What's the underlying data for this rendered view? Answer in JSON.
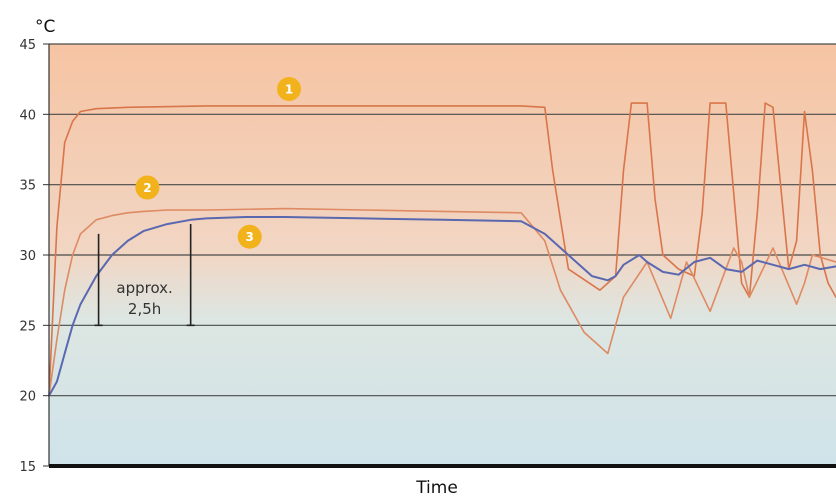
{
  "chart_data": {
    "type": "line",
    "unit_label": "°C",
    "xlabel": "Time",
    "ylabel": "",
    "ylim": [
      15,
      45
    ],
    "yticks": [
      15,
      20,
      25,
      30,
      35,
      40,
      45
    ],
    "grid": true,
    "colors": {
      "series_1": "#d9754a",
      "series_2": "#de8a62",
      "series_3": "#5a68b0",
      "badge": "#f2b21c",
      "background_top": "#f6c4a3",
      "background_bottom": "#cfe3ea"
    },
    "annotation": {
      "line1": "approx.",
      "line2": "2,5h"
    },
    "series": [
      {
        "badge": "1",
        "x": [
          0,
          1,
          2,
          3,
          4,
          6,
          10,
          20,
          30,
          40,
          50,
          60,
          63,
          64,
          66,
          70,
          72,
          73,
          74,
          76,
          77,
          78,
          80,
          82,
          83,
          84,
          86,
          88,
          89,
          90,
          91,
          92,
          94,
          95,
          96,
          97,
          98,
          99,
          100
        ],
        "y": [
          20,
          32,
          38,
          39.5,
          40.2,
          40.4,
          40.5,
          40.6,
          40.6,
          40.6,
          40.6,
          40.6,
          40.5,
          36,
          29,
          27.5,
          28.5,
          36,
          40.8,
          40.8,
          34,
          30,
          29,
          28.5,
          33,
          40.8,
          40.8,
          28,
          27,
          33,
          40.8,
          40.5,
          29,
          31,
          40.2,
          36,
          30,
          28,
          27
        ]
      },
      {
        "badge": "2",
        "x": [
          0,
          1,
          2,
          3,
          4,
          6,
          8,
          10,
          12,
          15,
          20,
          30,
          40,
          50,
          60,
          63,
          65,
          68,
          71,
          72,
          73,
          76,
          79,
          80,
          81,
          84,
          87,
          88,
          89,
          92,
          95,
          96,
          97,
          100
        ],
        "y": [
          20,
          24,
          27.5,
          30,
          31.5,
          32.5,
          32.8,
          33,
          33.1,
          33.2,
          33.2,
          33.3,
          33.2,
          33.1,
          33,
          31,
          27.5,
          24.5,
          23,
          25,
          27,
          29.5,
          25.5,
          27.5,
          29.5,
          26,
          30.5,
          29.5,
          27,
          30.5,
          26.5,
          28,
          30,
          29.5
        ]
      },
      {
        "badge": "3",
        "x": [
          0,
          1,
          2,
          3,
          4,
          6,
          8,
          10,
          12,
          15,
          18,
          20,
          25,
          30,
          40,
          50,
          60,
          63,
          66,
          69,
          71,
          72,
          73,
          75,
          76,
          78,
          80,
          82,
          84,
          86,
          88,
          90,
          92,
          94,
          96,
          98,
          100
        ],
        "y": [
          20,
          21,
          23,
          25,
          26.5,
          28.5,
          30,
          31,
          31.7,
          32.2,
          32.5,
          32.6,
          32.7,
          32.7,
          32.6,
          32.5,
          32.4,
          31.5,
          30,
          28.5,
          28.2,
          28.5,
          29.3,
          30,
          29.5,
          28.8,
          28.6,
          29.5,
          29.8,
          29,
          28.8,
          29.6,
          29.3,
          29,
          29.3,
          29,
          29.2
        ]
      }
    ]
  }
}
